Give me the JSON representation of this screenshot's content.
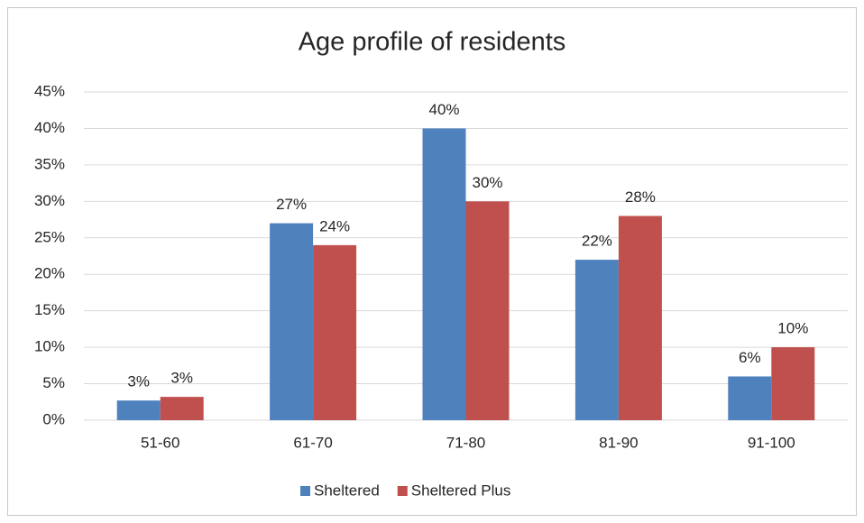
{
  "chart_data": {
    "type": "bar",
    "title": "Age profile of residents",
    "categories": [
      "51-60",
      "61-70",
      "71-80",
      "81-90",
      "91-100"
    ],
    "series": [
      {
        "name": "Sheltered",
        "color": "#4f81bd",
        "values": [
          2.7,
          27,
          40,
          22,
          6
        ],
        "value_labels": [
          "3%",
          "27%",
          "40%",
          "22%",
          "6%"
        ]
      },
      {
        "name": "Sheltered Plus",
        "color": "#c0504d",
        "values": [
          3.2,
          24,
          30,
          28,
          10
        ],
        "value_labels": [
          "3%",
          "24%",
          "30%",
          "28%",
          "10%"
        ]
      }
    ],
    "ylim": [
      0,
      45
    ],
    "yticks": [
      {
        "value": 0,
        "label": "0%"
      },
      {
        "value": 5,
        "label": "5%"
      },
      {
        "value": 10,
        "label": "10%"
      },
      {
        "value": 15,
        "label": "15%"
      },
      {
        "value": 20,
        "label": "20%"
      },
      {
        "value": 25,
        "label": "25%"
      },
      {
        "value": 30,
        "label": "30%"
      },
      {
        "value": 35,
        "label": "35%"
      },
      {
        "value": 40,
        "label": "40%"
      },
      {
        "value": 45,
        "label": "45%"
      }
    ],
    "grid": true,
    "legend": "bottom"
  }
}
